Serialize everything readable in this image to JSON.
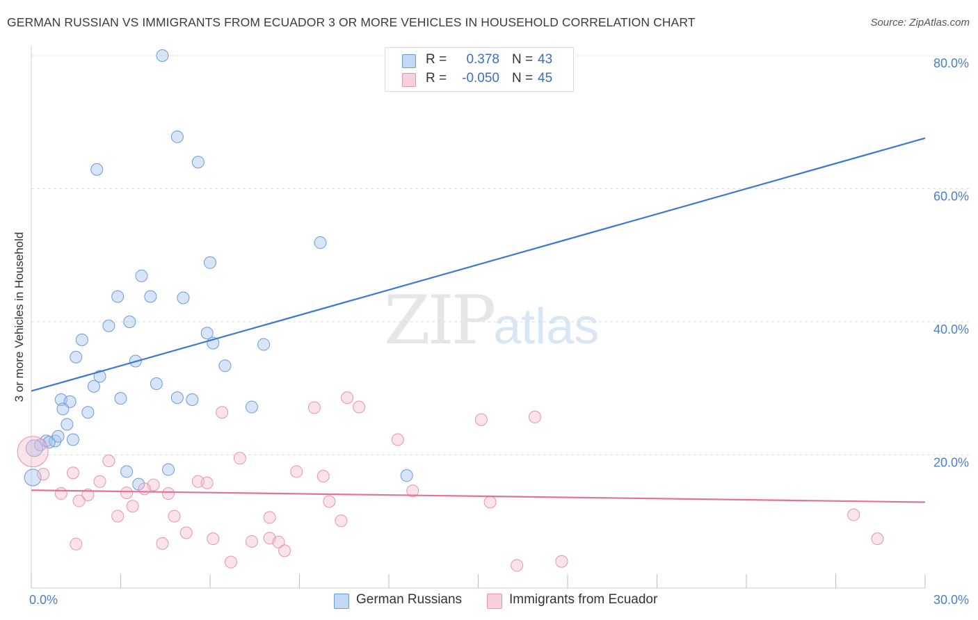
{
  "title": "GERMAN RUSSIAN VS IMMIGRANTS FROM ECUADOR 3 OR MORE VEHICLES IN HOUSEHOLD CORRELATION CHART",
  "source": "Source: ZipAtlas.com",
  "watermark": {
    "zip": "ZIP",
    "atlas": "atlas"
  },
  "legend": {
    "rows": [
      {
        "r_label": "R =",
        "r_value": "0.378",
        "n_label": "N =",
        "n_value": "43",
        "color": "#a9c6f0"
      },
      {
        "r_label": "R =",
        "r_value": "-0.050",
        "n_label": "N =",
        "n_value": "45",
        "color": "#f5b8cb"
      }
    ]
  },
  "bottom_legend": [
    "German Russians",
    "Immigrants from Ecuador"
  ],
  "chart_data": {
    "type": "scatter",
    "title": "GERMAN RUSSIAN VS IMMIGRANTS FROM ECUADOR 3 OR MORE VEHICLES IN HOUSEHOLD CORRELATION CHART",
    "xlabel": "",
    "ylabel": "3 or more Vehicles in Household",
    "xlim": [
      0,
      30
    ],
    "ylim": [
      0,
      80
    ],
    "x_tick_labels": [
      "0.0%",
      "30.0%"
    ],
    "y_ticks": [
      20,
      40,
      60,
      80
    ],
    "y_tick_labels": [
      "20.0%",
      "40.0%",
      "60.0%",
      "80.0%"
    ],
    "grid": "horizontal dashed",
    "colors": {
      "german_russians": "#3b78d4",
      "ecuador": "#e86f9b",
      "german_fill": "#a9c6f0",
      "ecuador_fill": "#f5b8cb"
    },
    "series": [
      {
        "name": "German Russians",
        "trend": {
          "x": [
            0,
            30
          ],
          "y": [
            29.6,
            67.6
          ]
        },
        "points": [
          [
            4.4,
            80.0
          ],
          [
            4.9,
            67.8
          ],
          [
            2.2,
            62.9
          ],
          [
            5.6,
            64.0
          ],
          [
            9.7,
            51.9
          ],
          [
            6.0,
            48.9
          ],
          [
            3.7,
            46.9
          ],
          [
            2.9,
            43.8
          ],
          [
            4.0,
            43.8
          ],
          [
            5.1,
            43.6
          ],
          [
            2.6,
            39.4
          ],
          [
            3.3,
            40.0
          ],
          [
            1.7,
            37.3
          ],
          [
            5.9,
            38.3
          ],
          [
            6.1,
            36.8
          ],
          [
            7.8,
            36.6
          ],
          [
            1.5,
            34.7
          ],
          [
            3.5,
            34.1
          ],
          [
            6.5,
            33.4
          ],
          [
            2.3,
            31.8
          ],
          [
            2.1,
            30.3
          ],
          [
            4.2,
            30.7
          ],
          [
            3.0,
            28.5
          ],
          [
            4.9,
            28.6
          ],
          [
            5.4,
            28.3
          ],
          [
            1.0,
            28.3
          ],
          [
            1.3,
            28.0
          ],
          [
            7.4,
            27.2
          ],
          [
            1.06,
            26.9
          ],
          [
            1.9,
            26.4
          ],
          [
            1.2,
            24.6
          ],
          [
            0.5,
            22.1
          ],
          [
            0.8,
            22.1
          ],
          [
            1.4,
            22.3
          ],
          [
            0.3,
            21.5
          ],
          [
            0.6,
            21.9
          ],
          [
            0.9,
            22.8
          ],
          [
            3.2,
            17.5
          ],
          [
            4.6,
            17.8
          ],
          [
            12.6,
            16.9
          ],
          [
            3.6,
            15.6
          ],
          [
            0.05,
            16.6
          ],
          [
            0.1,
            21.0
          ]
        ]
      },
      {
        "name": "Immigrants from Ecuador",
        "trend": {
          "x": [
            0,
            30
          ],
          "y": [
            14.7,
            12.9
          ]
        },
        "points": [
          [
            0.05,
            20.5
          ],
          [
            10.6,
            28.6
          ],
          [
            11.0,
            27.2
          ],
          [
            9.5,
            27.1
          ],
          [
            6.4,
            26.4
          ],
          [
            16.9,
            25.7
          ],
          [
            15.1,
            25.3
          ],
          [
            12.3,
            22.3
          ],
          [
            2.6,
            19.1
          ],
          [
            7.0,
            19.5
          ],
          [
            8.9,
            17.5
          ],
          [
            9.8,
            16.8
          ],
          [
            1.4,
            17.3
          ],
          [
            0.4,
            17.1
          ],
          [
            2.3,
            16.0
          ],
          [
            5.6,
            16.0
          ],
          [
            5.9,
            15.8
          ],
          [
            4.1,
            15.5
          ],
          [
            3.8,
            14.9
          ],
          [
            12.8,
            14.6
          ],
          [
            1.0,
            14.2
          ],
          [
            3.2,
            14.3
          ],
          [
            1.9,
            14.0
          ],
          [
            4.6,
            14.2
          ],
          [
            1.6,
            13.1
          ],
          [
            10.0,
            13.0
          ],
          [
            15.4,
            12.9
          ],
          [
            3.4,
            12.3
          ],
          [
            2.9,
            10.8
          ],
          [
            4.8,
            10.8
          ],
          [
            8.0,
            10.6
          ],
          [
            10.4,
            10.1
          ],
          [
            27.6,
            11.0
          ],
          [
            5.2,
            8.3
          ],
          [
            6.1,
            7.4
          ],
          [
            8.0,
            7.5
          ],
          [
            7.4,
            7.0
          ],
          [
            8.3,
            6.9
          ],
          [
            4.4,
            6.7
          ],
          [
            1.5,
            6.6
          ],
          [
            8.5,
            5.6
          ],
          [
            6.7,
            3.9
          ],
          [
            16.3,
            3.4
          ],
          [
            17.8,
            4.0
          ],
          [
            28.4,
            7.4
          ]
        ]
      }
    ]
  }
}
